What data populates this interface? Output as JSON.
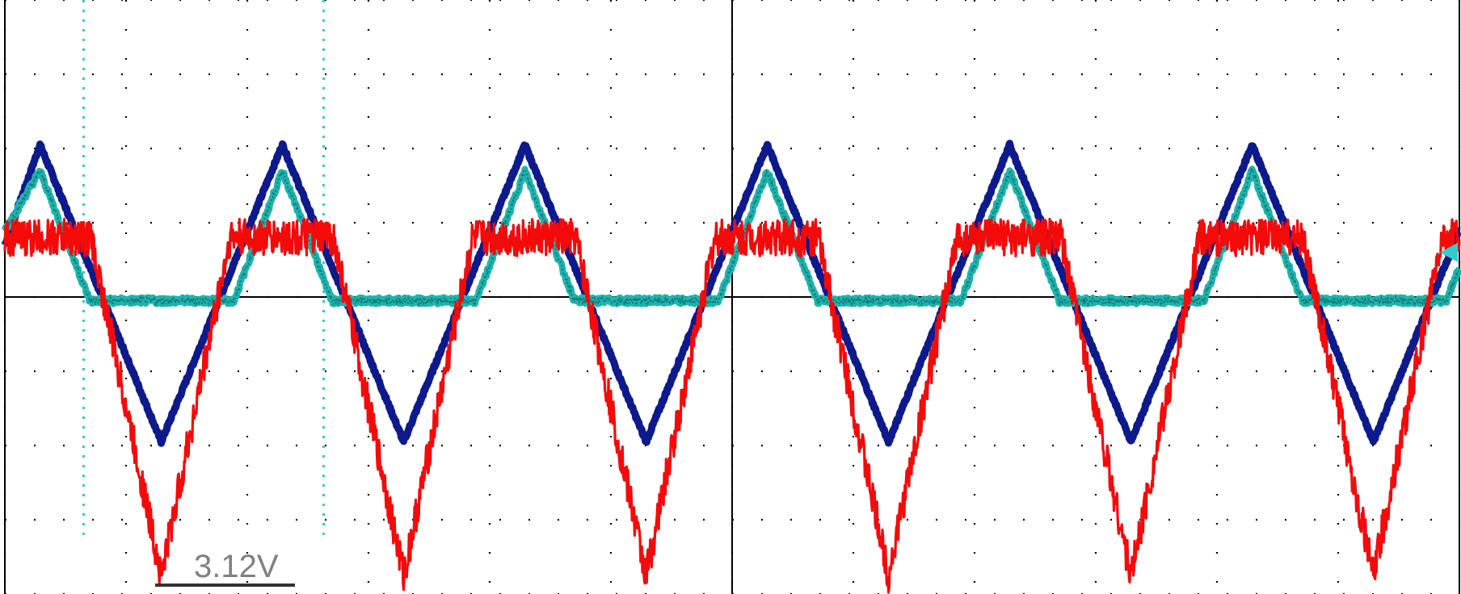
{
  "chart_data": {
    "type": "line",
    "title": "",
    "grid": true,
    "x_divisions": 12,
    "y_divisions": 8,
    "xlim": [
      0,
      12
    ],
    "ylim": [
      -4,
      4
    ],
    "series": [
      {
        "color": "#0d1a8c",
        "shape": "triangle",
        "x": [
          0.0,
          0.29,
          1.29,
          2.29,
          3.29,
          4.29,
          5.29,
          6.29,
          7.29,
          8.29,
          9.29,
          10.29,
          11.29,
          12.0
        ],
        "y": [
          0.7,
          2.05,
          -1.95,
          2.05,
          -1.95,
          2.05,
          -1.95,
          2.05,
          -1.95,
          2.05,
          -1.95,
          2.05,
          -1.95,
          0.9
        ]
      },
      {
        "color": "#1fb3ad",
        "shape": "clipped-triangle",
        "x": [
          0.0,
          0.29,
          0.7,
          1.29,
          1.89,
          2.29,
          2.7,
          3.29,
          3.89,
          4.29,
          4.7,
          5.29,
          5.89,
          6.29,
          6.7,
          7.29,
          7.89,
          8.29,
          8.7,
          9.29,
          9.89,
          10.29,
          10.7,
          11.29,
          11.89,
          12.0
        ],
        "y": [
          0.9,
          1.7,
          -0.05,
          -0.05,
          -0.05,
          1.7,
          -0.05,
          -0.05,
          -0.05,
          1.7,
          -0.05,
          -0.05,
          -0.05,
          1.7,
          -0.05,
          -0.05,
          -0.05,
          1.7,
          -0.05,
          -0.05,
          -0.05,
          1.7,
          -0.05,
          -0.05,
          -0.05,
          0.4
        ]
      },
      {
        "color": "#f50a0a",
        "shape": "trapezoid-v",
        "x": [
          0.0,
          0.71,
          1.29,
          1.86,
          2.71,
          3.29,
          3.86,
          4.71,
          5.29,
          5.86,
          6.71,
          7.29,
          7.86,
          8.71,
          9.29,
          9.86,
          10.71,
          11.29,
          11.86,
          12.0
        ],
        "y": [
          0.8,
          0.8,
          -3.75,
          0.8,
          0.8,
          -3.75,
          0.8,
          0.8,
          -3.75,
          0.8,
          0.8,
          -3.75,
          0.8,
          0.8,
          -3.75,
          0.8,
          0.8,
          -3.75,
          0.8,
          0.8
        ]
      }
    ],
    "cursors": [
      {
        "orientation": "vertical",
        "x": 0.65,
        "color": "#33cccc",
        "style": "dotted"
      },
      {
        "orientation": "vertical",
        "x": 2.63,
        "color": "#33cccc",
        "style": "dotted"
      }
    ],
    "marker": {
      "type": "trigger-level-arrow",
      "color": "#33cccc",
      "y": 0.6
    },
    "measurement": {
      "label": "3.12V",
      "color": "#808080"
    }
  }
}
